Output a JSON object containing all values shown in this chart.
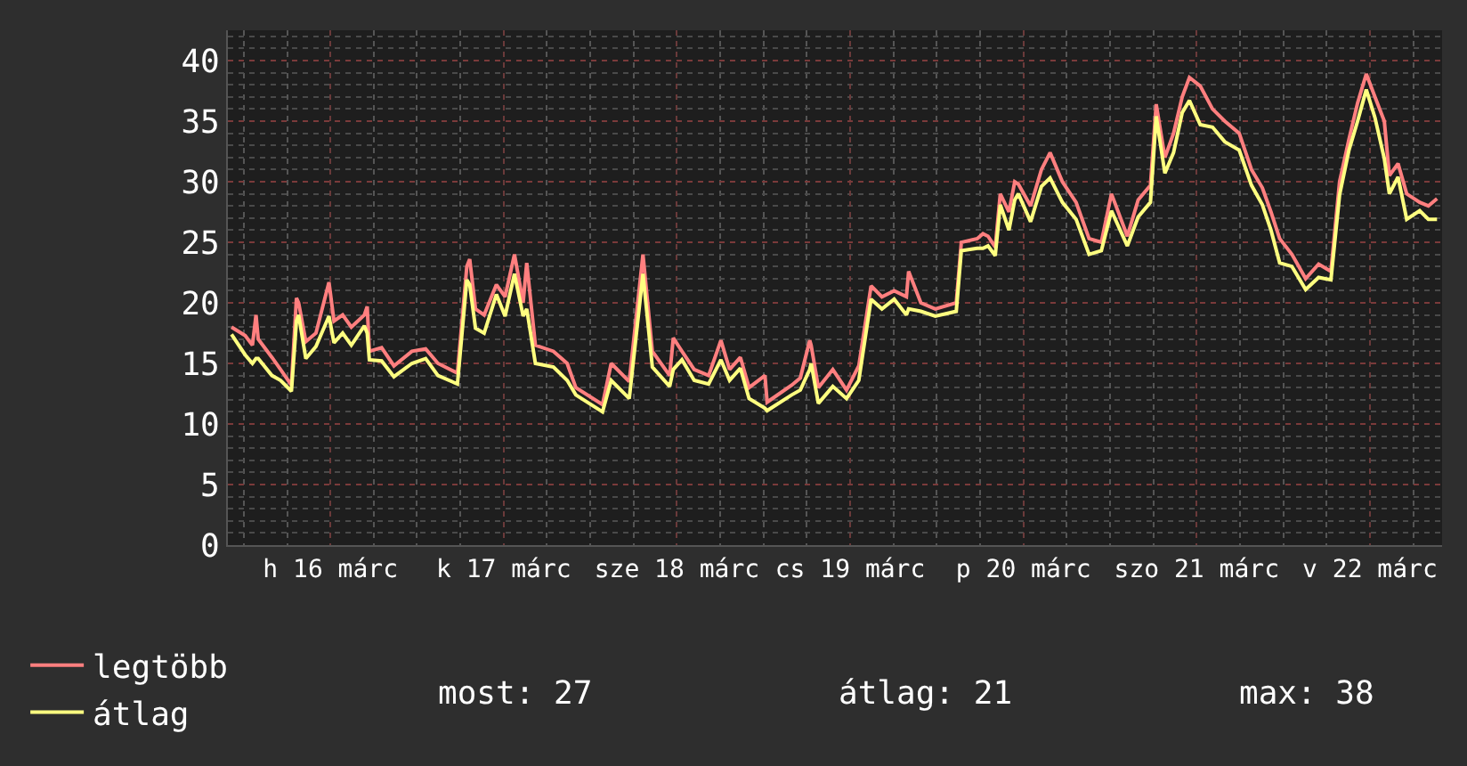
{
  "chart_data": {
    "type": "line",
    "x": [
      "--03-15T22:18",
      "--03-16T00:12",
      "--03-16T01:12",
      "--03-16T01:42",
      "--03-16T02:00",
      "--03-16T03:54",
      "--03-16T05:06",
      "--03-16T06:36",
      "--03-16T07:18",
      "--03-16T07:36",
      "--03-16T08:36",
      "--03-16T10:00",
      "--03-16T11:48",
      "--03-16T12:30",
      "--03-16T13:42",
      "--03-16T14:54",
      "--03-16T16:42",
      "--03-16T17:06",
      "--03-16T17:24",
      "--03-16T19:06",
      "--03-16T20:48",
      "--03-16T23:18",
      "--03-17T01:12",
      "--03-17T02:54",
      "--03-17T05:36",
      "--03-17T06:54",
      "--03-17T07:18",
      "--03-17T08:06",
      "--03-17T09:18",
      "--03-17T11:00",
      "--03-17T12:12",
      "--03-17T13:30",
      "--03-17T14:42",
      "--03-17T15:12",
      "--03-17T16:24",
      "--03-17T18:54",
      "--03-17T20:48",
      "--03-17T22:00",
      "--03-18T01:42",
      "--03-18T02:54",
      "--03-18T05:24",
      "--03-18T07:18",
      "--03-18T08:36",
      "--03-18T11:00",
      "--03-18T11:30",
      "--03-18T12:42",
      "--03-18T14:24",
      "--03-18T16:24",
      "--03-18T18:06",
      "--03-18T19:18",
      "--03-18T20:48",
      "--03-18T22:00",
      "--03-19T00:12",
      "--03-19T00:30",
      "--03-19T03:54",
      "--03-19T05:06",
      "--03-19T06:24",
      "--03-19T06:36",
      "--03-19T07:36",
      "--03-19T09:36",
      "--03-19T11:30",
      "--03-19T13:12",
      "--03-19T14:54",
      "--03-19T16:24",
      "--03-19T18:06",
      "--03-19T19:48",
      "--03-19T20:06",
      "--03-19T21:48",
      "--03-19T23:48",
      "--03-20T02:42",
      "--03-20T03:24",
      "--03-20T05:36",
      "--03-20T06:24",
      "--03-20T07:06",
      "--03-20T08:06",
      "--03-20T08:48",
      "--03-20T10:00",
      "--03-20T10:48",
      "--03-20T11:18",
      "--03-20T13:00",
      "--03-20T14:30",
      "--03-20T15:42",
      "--03-20T17:24",
      "--03-20T19:18",
      "--03-20T21:06",
      "--03-20T22:48",
      "--03-21T00:12",
      "--03-21T02:24",
      "--03-21T03:54",
      "--03-21T05:36",
      "--03-21T06:24",
      "--03-21T07:36",
      "--03-21T08:48",
      "--03-21T10:00",
      "--03-21T11:00",
      "--03-21T12:30",
      "--03-21T14:12",
      "--03-21T15:54",
      "--03-21T17:54",
      "--03-21T19:36",
      "--03-21T21:06",
      "--03-21T22:18",
      "--03-21T23:30",
      "--03-22T01:12",
      "--03-22T03:06",
      "--03-22T04:54",
      "--03-22T06:36",
      "--03-22T07:48",
      "--03-22T09:06",
      "--03-22T10:18",
      "--03-22T11:30",
      "--03-22T12:42",
      "--03-22T14:00",
      "--03-22T14:42",
      "--03-22T15:54",
      "--03-22T17:06",
      "--03-22T18:54",
      "--03-22T20:06",
      "--03-22T21:18"
    ],
    "series": [
      {
        "name": "legtöbb",
        "color": "#ff7f7f",
        "values": [
          18.0,
          17.3,
          16.5,
          19.0,
          17.0,
          15.5,
          14.5,
          13.2,
          20.4,
          20.0,
          16.8,
          17.5,
          21.7,
          18.5,
          19.0,
          18.0,
          19.0,
          19.7,
          16.0,
          16.3,
          14.8,
          16.0,
          16.2,
          15.0,
          14.2,
          23.0,
          23.6,
          19.5,
          19.0,
          21.5,
          20.5,
          24.0,
          20.0,
          23.3,
          16.5,
          16.0,
          15.0,
          13.0,
          11.6,
          15.0,
          13.5,
          24.0,
          16.0,
          14.0,
          17.1,
          16.0,
          14.5,
          14.0,
          16.9,
          14.5,
          15.5,
          13.0,
          14.0,
          11.8,
          13.2,
          13.8,
          16.9,
          16.5,
          13.0,
          14.5,
          12.8,
          14.8,
          21.4,
          20.5,
          21.0,
          20.5,
          22.6,
          20.0,
          19.5,
          20.0,
          25.0,
          25.3,
          25.7,
          25.5,
          24.6,
          29.0,
          27.5,
          30.0,
          29.8,
          28.0,
          31.0,
          32.4,
          30.0,
          28.3,
          25.3,
          25.0,
          29.0,
          25.5,
          28.5,
          29.7,
          36.4,
          32.0,
          34.0,
          37.0,
          38.6,
          37.9,
          36.0,
          35.0,
          34.0,
          31.0,
          29.5,
          27.5,
          25.3,
          24.0,
          22.0,
          23.2,
          22.6,
          30.0,
          33.5,
          36.5,
          38.9,
          37.0,
          35.0,
          30.5,
          31.5,
          29.0,
          28.3,
          28.0,
          28.6
        ]
      },
      {
        "name": "átlag",
        "color": "#ffff80",
        "values": [
          17.4,
          15.7,
          15.0,
          15.4,
          15.4,
          14.0,
          13.6,
          12.7,
          18.5,
          19.0,
          15.4,
          16.4,
          18.9,
          16.7,
          17.5,
          16.5,
          18.1,
          17.5,
          15.3,
          15.2,
          13.9,
          15.0,
          15.4,
          14.0,
          13.3,
          21.9,
          21.5,
          17.9,
          17.5,
          20.7,
          18.9,
          22.4,
          18.9,
          19.5,
          15.0,
          14.7,
          13.6,
          12.4,
          11.0,
          13.6,
          12.1,
          22.4,
          14.7,
          13.1,
          14.5,
          15.3,
          13.6,
          13.3,
          15.3,
          13.6,
          14.6,
          12.1,
          11.3,
          11.1,
          12.4,
          12.8,
          14.5,
          15.0,
          11.7,
          13.1,
          12.1,
          13.6,
          20.3,
          19.5,
          20.3,
          19.0,
          19.5,
          19.3,
          18.9,
          19.3,
          24.3,
          24.5,
          24.5,
          24.7,
          23.9,
          28.1,
          26.0,
          28.5,
          29.0,
          26.7,
          29.6,
          30.3,
          28.3,
          26.9,
          24.0,
          24.3,
          27.6,
          24.7,
          27.1,
          28.3,
          35.4,
          30.7,
          32.4,
          35.7,
          36.7,
          34.7,
          34.5,
          33.3,
          32.6,
          29.7,
          28.1,
          26.0,
          23.3,
          23.0,
          21.1,
          22.1,
          21.9,
          28.9,
          32.6,
          35.0,
          37.6,
          35.3,
          31.9,
          29.0,
          30.4,
          26.9,
          27.6,
          26.9,
          26.9
        ]
      }
    ],
    "xlim": [
      "--03-15T21:48",
      "--03-22T22:00"
    ],
    "xticks": [
      {
        "value": "--03-16T12:00",
        "label": "h 16 márc"
      },
      {
        "value": "--03-17T12:00",
        "label": "k 17 márc"
      },
      {
        "value": "--03-18T12:00",
        "label": "sze 18 márc"
      },
      {
        "value": "--03-19T12:00",
        "label": "cs 19 márc"
      },
      {
        "value": "--03-20T12:00",
        "label": "p 20 márc"
      },
      {
        "value": "--03-21T12:00",
        "label": "szo 21 márc"
      },
      {
        "value": "--03-22T12:00",
        "label": "v 22 márc"
      }
    ],
    "ylim": [
      0,
      42.5
    ],
    "yticks": [
      0,
      5,
      10,
      15,
      20,
      25,
      30,
      35,
      40
    ],
    "grid": true,
    "legend": "bottom left",
    "annotations": [
      "most: 27",
      "átlag: 21",
      "max: 38"
    ]
  }
}
